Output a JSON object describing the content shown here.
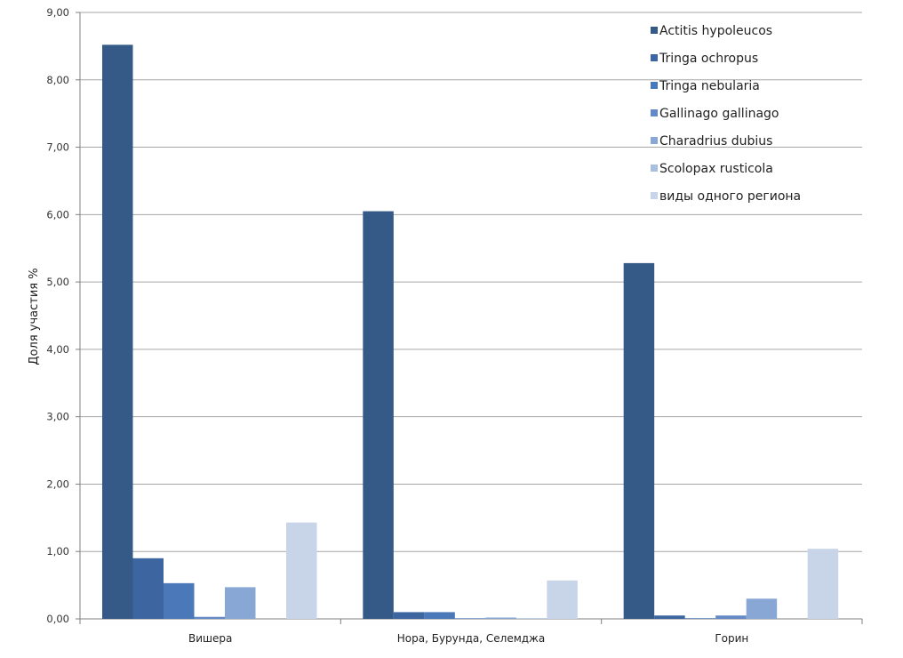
{
  "chart_data": {
    "type": "bar",
    "title": "",
    "xlabel": "",
    "ylabel": "Доля участия %",
    "ylim": [
      0,
      9
    ],
    "y_ticks": [
      "0,00",
      "1,00",
      "2,00",
      "3,00",
      "4,00",
      "5,00",
      "6,00",
      "7,00",
      "8,00",
      "9,00"
    ],
    "grid": true,
    "legend_position": "top-right",
    "categories": [
      "Вишера",
      "Нора, Бурунда, Селемджа",
      "Горин"
    ],
    "series": [
      {
        "name": "Actitis hypoleucos",
        "color": "#355a88",
        "values": [
          8.52,
          6.05,
          5.28
        ]
      },
      {
        "name": "Tringa ochropus",
        "color": "#3d65a0",
        "values": [
          0.9,
          0.1,
          0.05
        ]
      },
      {
        "name": "Tringa nebularia",
        "color": "#4a78b8",
        "values": [
          0.53,
          0.1,
          0.01
        ]
      },
      {
        "name": "Gallinago gallinago",
        "color": "#6389c6",
        "values": [
          0.03,
          0.01,
          0.05
        ]
      },
      {
        "name": "Charadrius dubius",
        "color": "#89a7d4",
        "values": [
          0.47,
          0.02,
          0.3
        ]
      },
      {
        "name": "Scolopax rusticola",
        "color": "#aabfe0",
        "values": [
          0.0,
          0.01,
          0.0
        ]
      },
      {
        "name": "виды одного региона",
        "color": "#c8d4e8",
        "values": [
          1.43,
          0.57,
          1.04
        ]
      }
    ]
  }
}
